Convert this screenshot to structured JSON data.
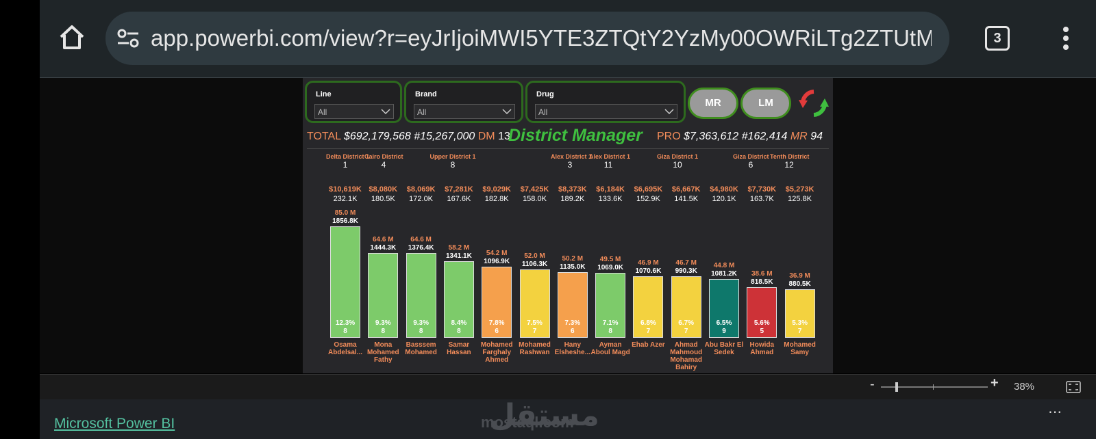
{
  "browser": {
    "url": "app.powerbi.com/view?r=eyJrIjoiMWI5YTE3ZTQtY2YzMy00OWRiLTg2ZTUtMWI",
    "tab_count": "3",
    "icons": [
      "home-icon",
      "site-settings-icon",
      "more-vertical-icon"
    ]
  },
  "slicers": [
    {
      "label": "Line",
      "value": "All"
    },
    {
      "label": "Brand",
      "value": "All"
    },
    {
      "label": "Drug",
      "value": "All"
    }
  ],
  "buttons": {
    "mr": "MR",
    "lm": "LM"
  },
  "kpis": {
    "total_label": "TOTAL",
    "total_value": "$692,179,568",
    "total_units": "#15,267,000",
    "dm_label": "DM",
    "dm_count": "13",
    "pro_label": "PRO",
    "pro_value": "$7,363,612",
    "pro_units": "#162,414",
    "mr_label": "MR",
    "mr_count": "94"
  },
  "title": "District Manager",
  "districts": [
    {
      "name": "Delta District 1",
      "num": "1"
    },
    {
      "name": "Cairo District",
      "num": "4"
    },
    {
      "name": "Upper District 1",
      "num": "8"
    },
    {
      "name": "Alex District 1",
      "num": "3"
    },
    {
      "name": "Alex District 1",
      "num": "11"
    },
    {
      "name": "Giza District 1",
      "num": "10"
    },
    {
      "name": "Giza District",
      "num": "6"
    },
    {
      "name": "Tenth District",
      "num": "12"
    }
  ],
  "chart_data": {
    "type": "bar",
    "categories": [
      "Osama Abdelsal...",
      "Mona Mohamed Fathy",
      "Basssem Mohamed",
      "Samar Hassan",
      "Mohamed Farghaly Ahmed",
      "Mohamed Rashwan",
      "Hany Elsheshe...",
      "Ayman Aboul Magd",
      "Ehab Azer",
      "Ahmad Mahmoud Mohamad Bahiry",
      "Abu Bakr El Sedek",
      "Howida Ahmad",
      "Mohamed Samy"
    ],
    "values": [
      85.0,
      64.6,
      64.6,
      58.2,
      54.2,
      52.0,
      50.2,
      49.5,
      46.9,
      46.7,
      44.8,
      38.6,
      36.9
    ],
    "value_labels": [
      "85.0 M",
      "64.6 M",
      "64.6 M",
      "58.2 M",
      "54.2 M",
      "52.0 M",
      "50.2 M",
      "49.5 M",
      "46.9 M",
      "46.7 M",
      "44.8 M",
      "38.6 M",
      "36.9 M"
    ],
    "units_labels": [
      "1856.8K",
      "1444.3K",
      "1376.4K",
      "1341.1K",
      "1096.9K",
      "1106.3K",
      "1135.0K",
      "1069.0K",
      "1070.6K",
      "990.3K",
      "1081.2K",
      "818.5K",
      "880.5K"
    ],
    "share_labels": [
      "12.3%",
      "9.3%",
      "9.3%",
      "8.4%",
      "7.8%",
      "7.5%",
      "7.3%",
      "7.1%",
      "6.8%",
      "6.7%",
      "6.5%",
      "5.6%",
      "5.3%"
    ],
    "mr_counts": [
      "8",
      "8",
      "8",
      "8",
      "6",
      "7",
      "6",
      "8",
      "7",
      "7",
      "9",
      "5",
      "7"
    ],
    "avg_sales_labels": [
      "$10,619K",
      "$8,080K",
      "$8,069K",
      "$7,281K",
      "$9,029K",
      "$7,425K",
      "$8,373K",
      "$6,184K",
      "$6,695K",
      "$6,667K",
      "$4,980K",
      "$7,730K",
      "$5,273K"
    ],
    "avg_units_labels": [
      "232.1K",
      "180.5K",
      "172.0K",
      "167.6K",
      "182.8K",
      "158.0K",
      "189.2K",
      "133.6K",
      "152.9K",
      "141.5K",
      "120.1K",
      "163.7K",
      "125.8K"
    ],
    "bar_colors": [
      "#7dcb6a",
      "#7dcb6a",
      "#7dcb6a",
      "#7dcb6a",
      "#f5a04c",
      "#f3d23f",
      "#f5a04c",
      "#7dcb6a",
      "#f3d23f",
      "#f3d23f",
      "#0e786b",
      "#cd3237",
      "#f3d23f"
    ],
    "ylim": [
      0,
      85.0
    ]
  },
  "status_bar": {
    "zoom_minus": "-",
    "zoom_plus": "+",
    "zoom_level": "38%",
    "zoom_fraction": 0.15
  },
  "footer": {
    "link": "Microsoft Power BI",
    "watermark_ar": "مستقل",
    "watermark_en": "mostaql.com",
    "more": "⋯"
  }
}
